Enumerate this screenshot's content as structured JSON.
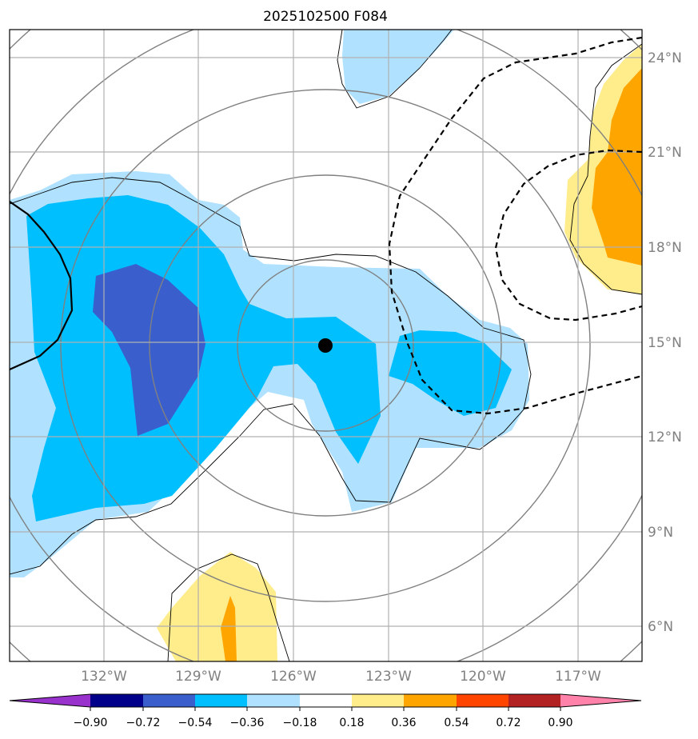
{
  "title": "2025102500 F084",
  "map": {
    "lon_labels": [
      "132°W",
      "129°W",
      "126°W",
      "123°W",
      "120°W",
      "117°W"
    ],
    "lat_labels": [
      "24°N",
      "21°N",
      "18°N",
      "15°N",
      "12°N",
      "9°N",
      "6°N"
    ],
    "lon_range": [
      -134.9,
      -114.9
    ],
    "lat_range": [
      5.0,
      25.0
    ],
    "center_marker": {
      "lon": -125.0,
      "lat": 14.9
    },
    "gridlines": true
  },
  "colorbar": {
    "ticks": [
      "−0.90",
      "−0.72",
      "−0.54",
      "−0.36",
      "−0.18",
      "0.18",
      "0.36",
      "0.54",
      "0.72",
      "0.90"
    ],
    "levels": [
      -0.9,
      -0.72,
      -0.54,
      -0.36,
      -0.18,
      0.18,
      0.36,
      0.54,
      0.72,
      0.9
    ],
    "colors": {
      "under": "#9932cc",
      "bins": [
        "#00008b",
        "#3a5fcd",
        "#00bfff",
        "#b0e2ff",
        "#ffffff",
        "#ffec8b",
        "#ffa500",
        "#ff4500",
        "#b22222"
      ],
      "over": "#ff82ab"
    },
    "extend": "both"
  }
}
